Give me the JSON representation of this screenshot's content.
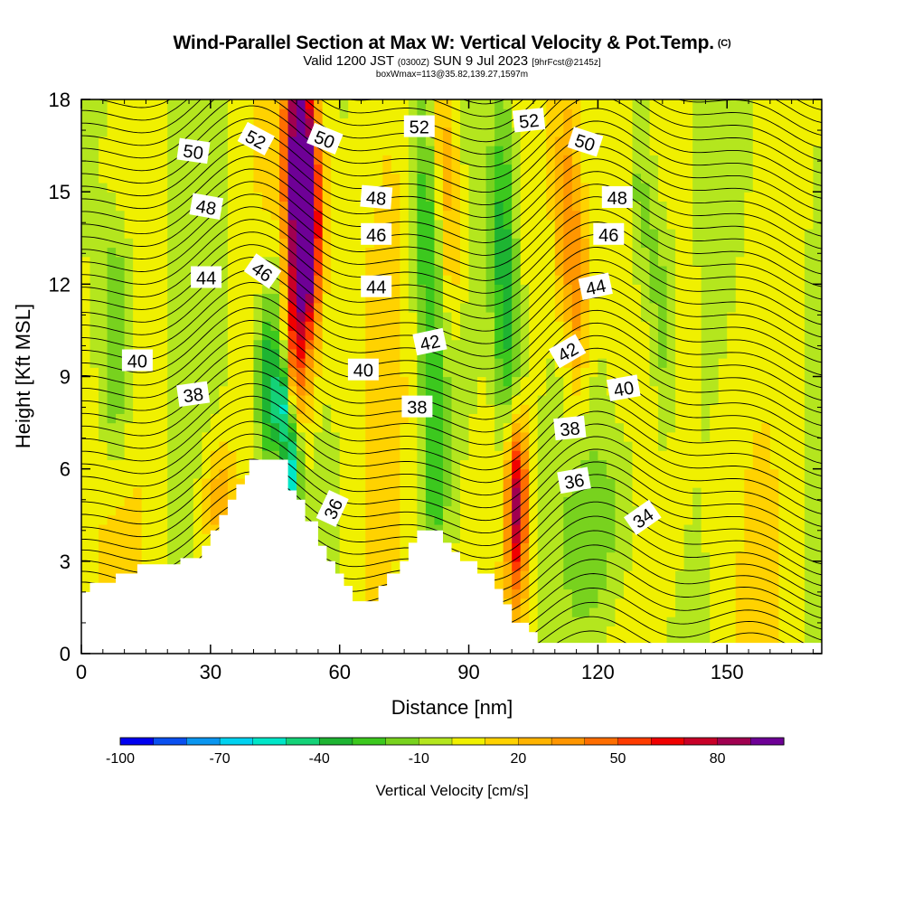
{
  "header": {
    "title": "Wind-Parallel Section at Max W: Vertical Velocity & Pot.Temp.",
    "copyright": "(C)",
    "subtitle_a": "Valid 1200 JST ",
    "subtitle_b": "(0300Z)",
    "subtitle_c": " SUN 9 Jul 2023 ",
    "subtitle_d": "[9hrFcst@2145z]",
    "subtitle2": "boxWmax=113@35.82,139.27,1597m"
  },
  "chart_data": {
    "type": "heatmap",
    "xlabel": "Distance [nm]",
    "ylabel": "Height [Kft MSL]",
    "xlim": [
      0,
      172
    ],
    "ylim": [
      0,
      18
    ],
    "x_ticks": [
      0,
      30,
      60,
      90,
      120,
      150
    ],
    "y_ticks": [
      0,
      3,
      6,
      9,
      12,
      15,
      18
    ],
    "colorbar": {
      "title": "Vertical Velocity [cm/s]",
      "tick_labels": [
        "-100",
        "-70",
        "-40",
        "-10",
        "20",
        "50",
        "80"
      ],
      "tick_values": [
        -100,
        -70,
        -40,
        -10,
        20,
        50,
        80
      ],
      "levels": [
        -100,
        -90,
        -80,
        -70,
        -60,
        -50,
        -40,
        -30,
        -20,
        -10,
        0,
        10,
        20,
        30,
        40,
        50,
        60,
        70,
        80,
        90,
        100
      ],
      "colors": [
        "#0000f0",
        "#0a50f0",
        "#0a96f0",
        "#00d2f0",
        "#00e6c8",
        "#14d278",
        "#1eb432",
        "#3cc81e",
        "#78d21e",
        "#b4e61e",
        "#f0f000",
        "#ffd200",
        "#ffb400",
        "#ff9600",
        "#ff6e00",
        "#ff3c00",
        "#f00000",
        "#c80028",
        "#a00050",
        "#6e0096"
      ]
    },
    "terrain_top_kft": [
      [
        0,
        2.0
      ],
      [
        2,
        2.0
      ],
      [
        2,
        2.3
      ],
      [
        8,
        2.3
      ],
      [
        8,
        2.6
      ],
      [
        13,
        2.6
      ],
      [
        13,
        2.9
      ],
      [
        23,
        2.9
      ],
      [
        23,
        3.1
      ],
      [
        28,
        3.1
      ],
      [
        28,
        3.5
      ],
      [
        30,
        3.5
      ],
      [
        30,
        4.0
      ],
      [
        32,
        4.0
      ],
      [
        32,
        4.5
      ],
      [
        34,
        4.5
      ],
      [
        34,
        5.0
      ],
      [
        36,
        5.0
      ],
      [
        36,
        5.5
      ],
      [
        38,
        5.5
      ],
      [
        38,
        5.8
      ],
      [
        39,
        5.8
      ],
      [
        39,
        6.3
      ],
      [
        48,
        6.3
      ],
      [
        48,
        5.3
      ],
      [
        50,
        5.3
      ],
      [
        50,
        5.0
      ],
      [
        52,
        5.0
      ],
      [
        52,
        4.3
      ],
      [
        55,
        4.3
      ],
      [
        55,
        3.5
      ],
      [
        57,
        3.5
      ],
      [
        57,
        3.0
      ],
      [
        59,
        3.0
      ],
      [
        59,
        2.6
      ],
      [
        61,
        2.6
      ],
      [
        61,
        2.2
      ],
      [
        63,
        2.2
      ],
      [
        63,
        1.7
      ],
      [
        69,
        1.7
      ],
      [
        69,
        2.2
      ],
      [
        71,
        2.2
      ],
      [
        71,
        2.6
      ],
      [
        74,
        2.6
      ],
      [
        74,
        3.0
      ],
      [
        76,
        3.0
      ],
      [
        76,
        3.6
      ],
      [
        78,
        3.6
      ],
      [
        78,
        4.0
      ],
      [
        84,
        4.0
      ],
      [
        84,
        3.6
      ],
      [
        86,
        3.6
      ],
      [
        86,
        3.3
      ],
      [
        88,
        3.3
      ],
      [
        88,
        3.0
      ],
      [
        92,
        3.0
      ],
      [
        92,
        2.6
      ],
      [
        96,
        2.6
      ],
      [
        96,
        2.1
      ],
      [
        98,
        2.1
      ],
      [
        98,
        1.6
      ],
      [
        100,
        1.6
      ],
      [
        100,
        1.0
      ],
      [
        101,
        1.0
      ],
      [
        101,
        1.0
      ],
      [
        104,
        1.0
      ],
      [
        104,
        0.7
      ],
      [
        106,
        0.7
      ],
      [
        106,
        0.35
      ],
      [
        110,
        0.35
      ],
      [
        110,
        0.35
      ],
      [
        172,
        0.35
      ]
    ],
    "w_features": [
      {
        "x0": 52,
        "z0": 14,
        "x1": 48,
        "z1": 10,
        "w": 80,
        "rx": 3.5,
        "rz": 5
      },
      {
        "x0": 50,
        "z0": 17,
        "x1": 52,
        "z1": 14,
        "w": 60,
        "rx": 3,
        "rz": 3
      },
      {
        "x0": 46,
        "z0": 11,
        "x1": 44,
        "z1": 9,
        "w": -60,
        "rx": 3,
        "rz": 3
      },
      {
        "x0": 49,
        "z0": 6,
        "x1": 47,
        "z1": 8,
        "w": -90,
        "rx": 2,
        "rz": 2
      },
      {
        "x0": 101,
        "z0": 5,
        "x1": 101,
        "z1": 5,
        "w": 100,
        "rx": 2.5,
        "rz": 3
      },
      {
        "x0": 98,
        "z0": 13,
        "x1": 100,
        "z1": 8,
        "w": -40,
        "rx": 3,
        "rz": 5
      },
      {
        "x0": 113,
        "z0": 14,
        "x1": 115,
        "z1": 12,
        "w": 40,
        "rx": 3,
        "rz": 4
      },
      {
        "x0": 84,
        "z0": 17,
        "x1": 86,
        "z1": 14,
        "w": 30,
        "rx": 3,
        "rz": 3
      },
      {
        "x0": 80,
        "z0": 14,
        "x1": 82,
        "z1": 7,
        "w": -30,
        "rx": 3,
        "rz": 5
      },
      {
        "x0": 8,
        "z0": 11,
        "x1": 8,
        "z1": 9,
        "w": -30,
        "rx": 4,
        "rz": 3
      },
      {
        "x0": 32,
        "z0": 5,
        "x1": 32,
        "z1": 5,
        "w": 25,
        "rx": 4,
        "rz": 2
      },
      {
        "x0": 130,
        "z0": 15,
        "x1": 135,
        "z1": 11,
        "w": -25,
        "rx": 3,
        "rz": 4
      },
      {
        "x0": 120,
        "z0": 4,
        "x1": 125,
        "z1": 5,
        "w": -15,
        "rx": 6,
        "rz": 3
      }
    ],
    "contour_labels": [
      {
        "text": "50",
        "x": 26,
        "z": 16.3,
        "angle": 8
      },
      {
        "text": "52",
        "x": 40.5,
        "z": 16.7,
        "angle": 28
      },
      {
        "text": "50",
        "x": 56.5,
        "z": 16.7,
        "angle": 22
      },
      {
        "text": "52",
        "x": 78.5,
        "z": 17.1,
        "angle": 0
      },
      {
        "text": "52",
        "x": 104,
        "z": 17.3,
        "angle": -6
      },
      {
        "text": "50",
        "x": 117,
        "z": 16.6,
        "angle": 18
      },
      {
        "text": "48",
        "x": 29,
        "z": 14.5,
        "angle": 10
      },
      {
        "text": "48",
        "x": 68.5,
        "z": 14.8,
        "angle": 5
      },
      {
        "text": "48",
        "x": 124.5,
        "z": 14.8,
        "angle": 0
      },
      {
        "text": "46",
        "x": 42,
        "z": 12.4,
        "angle": 35
      },
      {
        "text": "46",
        "x": 68.5,
        "z": 13.6,
        "angle": 0
      },
      {
        "text": "46",
        "x": 122.5,
        "z": 13.6,
        "angle": 0
      },
      {
        "text": "44",
        "x": 29,
        "z": 12.2,
        "angle": 0
      },
      {
        "text": "44",
        "x": 68.5,
        "z": 11.9,
        "angle": 0
      },
      {
        "text": "44",
        "x": 119.5,
        "z": 11.9,
        "angle": -12
      },
      {
        "text": "42",
        "x": 81,
        "z": 10.1,
        "angle": -12
      },
      {
        "text": "42",
        "x": 113,
        "z": 9.8,
        "angle": -30
      },
      {
        "text": "40",
        "x": 13,
        "z": 9.5,
        "angle": 0
      },
      {
        "text": "40",
        "x": 65.5,
        "z": 9.2,
        "angle": 0
      },
      {
        "text": "40",
        "x": 126,
        "z": 8.6,
        "angle": -10
      },
      {
        "text": "38",
        "x": 26,
        "z": 8.4,
        "angle": -8
      },
      {
        "text": "38",
        "x": 78,
        "z": 8.0,
        "angle": 0
      },
      {
        "text": "38",
        "x": 113.5,
        "z": 7.3,
        "angle": -6
      },
      {
        "text": "36",
        "x": 58.5,
        "z": 4.7,
        "angle": -65
      },
      {
        "text": "36",
        "x": 114.5,
        "z": 5.6,
        "angle": -10
      },
      {
        "text": "34",
        "x": 130.5,
        "z": 4.4,
        "angle": -35
      }
    ]
  }
}
